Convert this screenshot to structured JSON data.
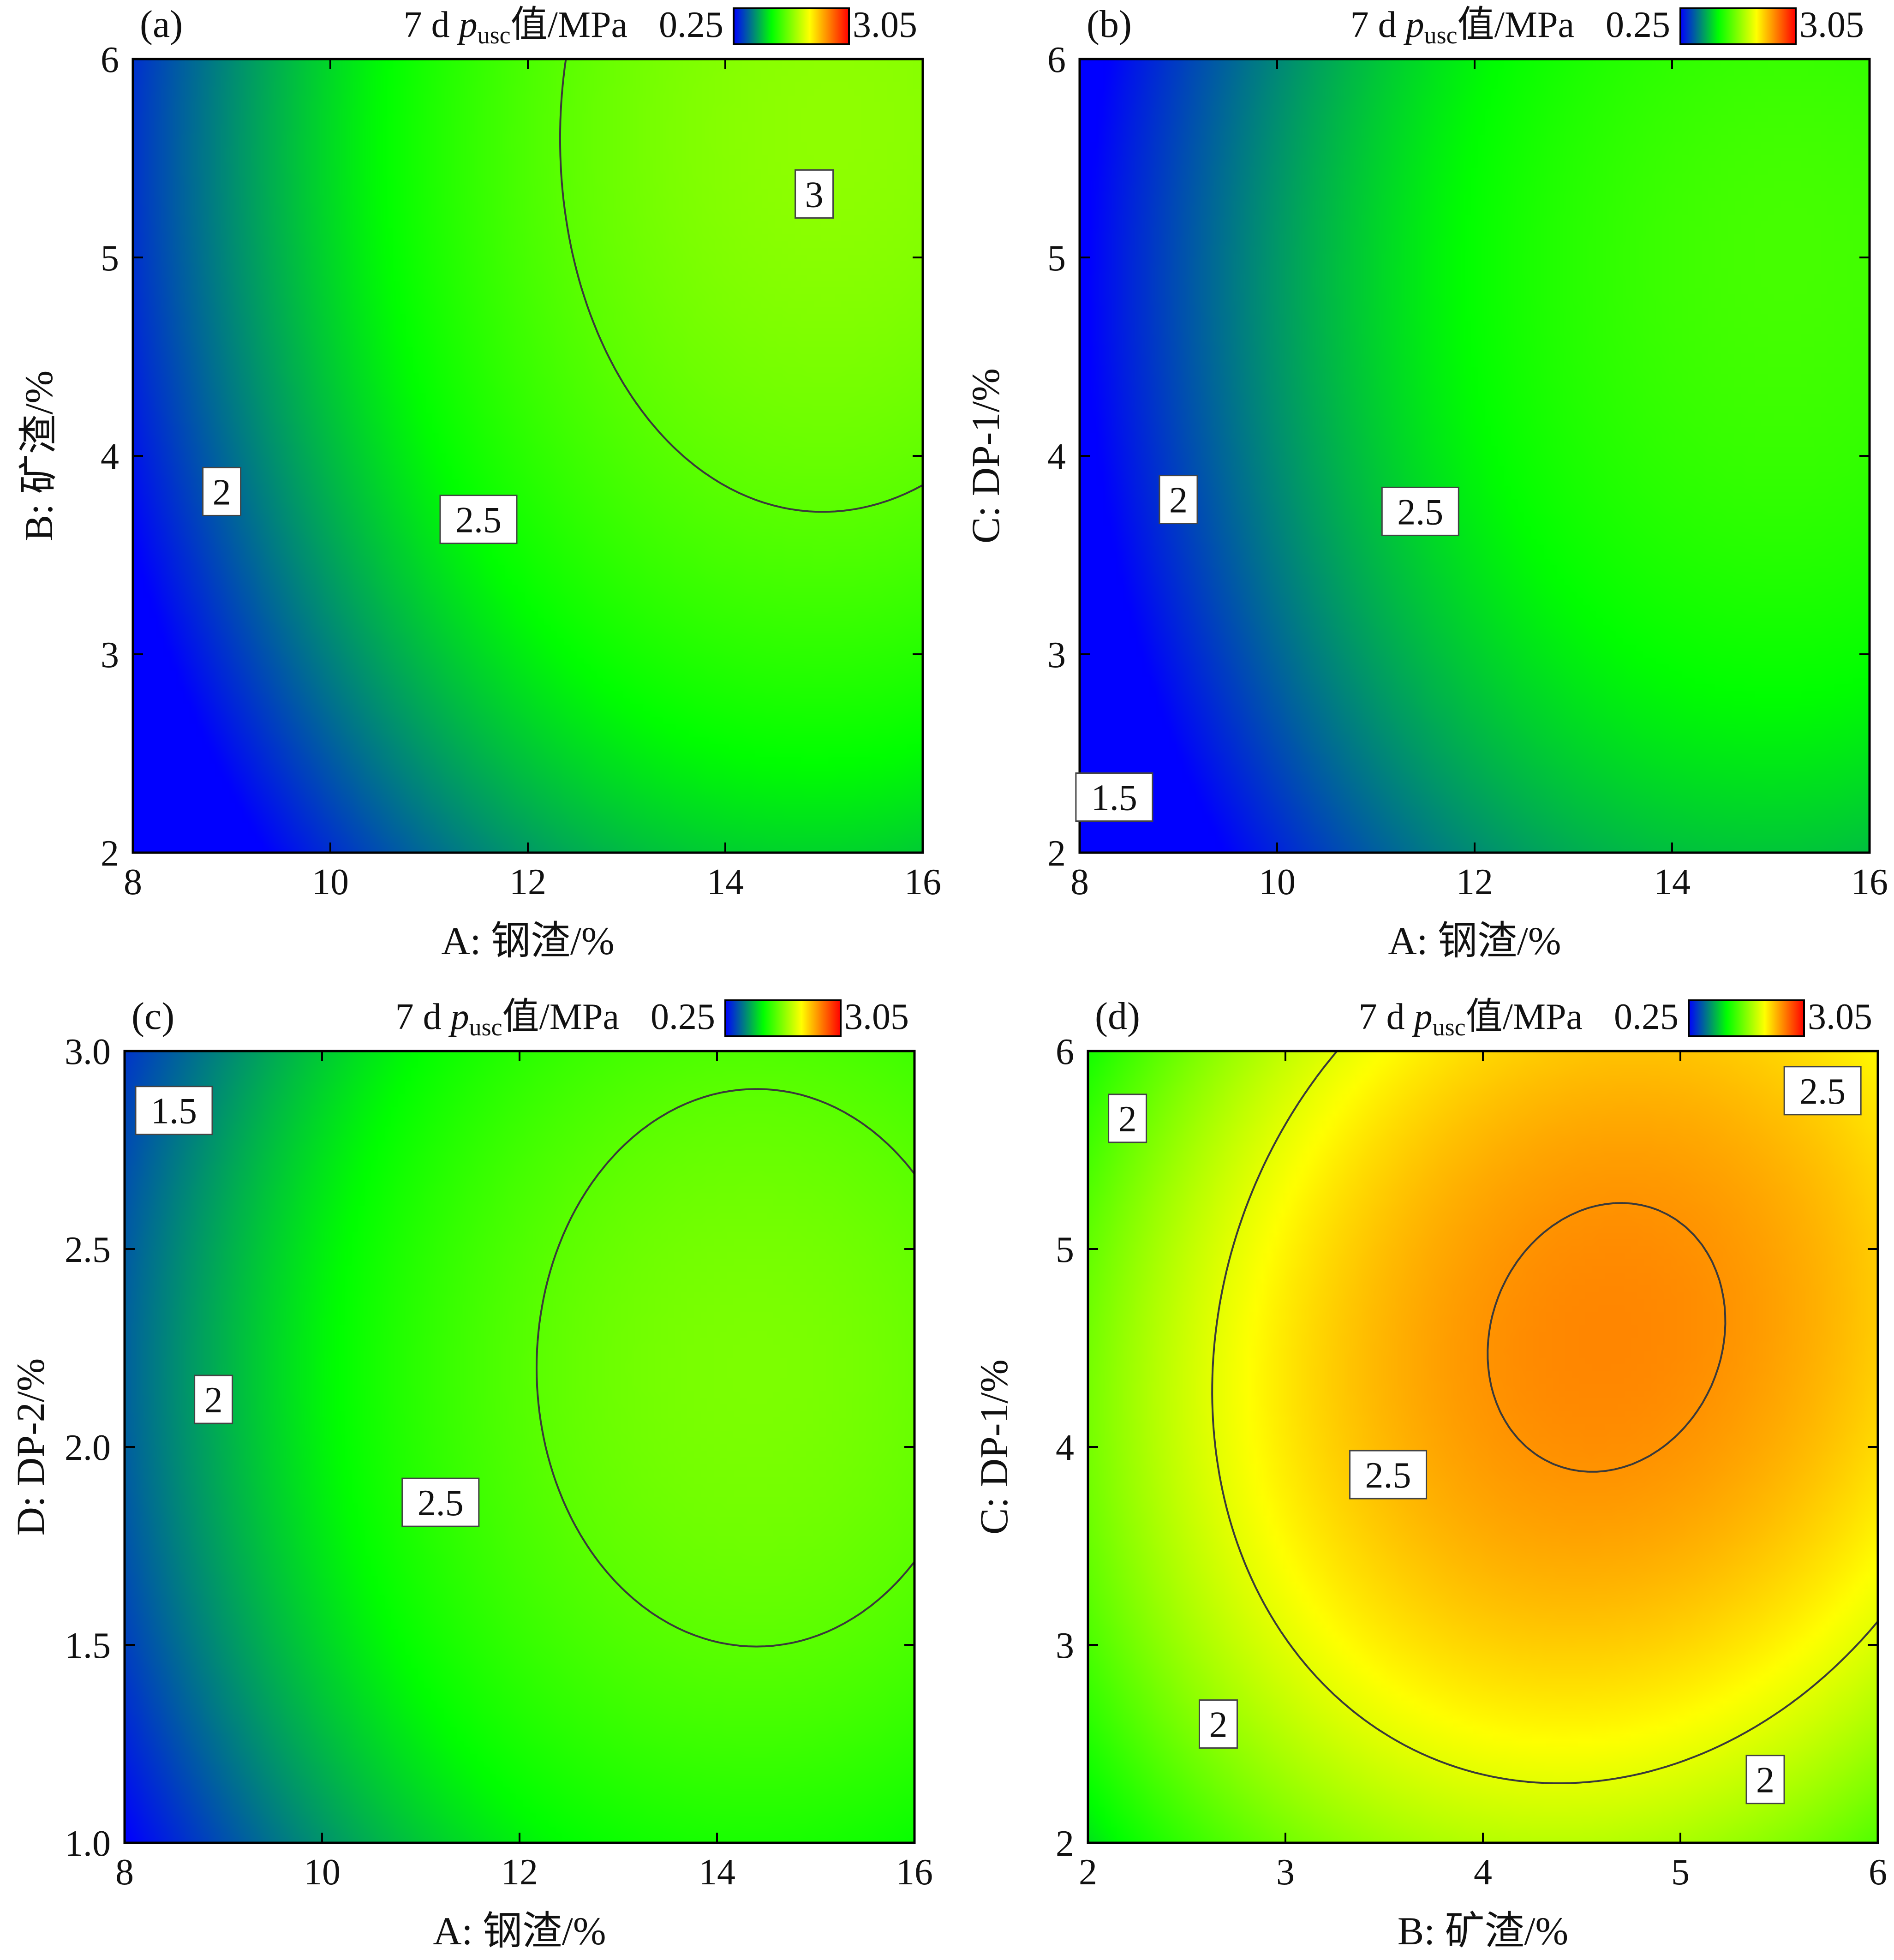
{
  "colorbar": {
    "title_main": "7 d ",
    "title_var": "p",
    "title_sub": "usc",
    "title_tail": "值/MPa",
    "min_label": "0.25",
    "max_label": "3.05",
    "min": 0.25,
    "max": 3.05,
    "stops": [
      "#0000ff",
      "#00ff00",
      "#ffff00",
      "#ff0000"
    ]
  },
  "chart_data": [
    {
      "type": "heatmap",
      "panel_label": "(a)",
      "xlabel": "A: 钢渣/%",
      "ylabel": "B: 矿渣/%",
      "xlim": [
        8,
        16
      ],
      "ylim": [
        2,
        6
      ],
      "x_ticks": [
        "8",
        "10",
        "12",
        "14",
        "16"
      ],
      "y_ticks": [
        "2",
        "3",
        "4",
        "5",
        "6"
      ],
      "surface": {
        "a": -1.064,
        "b": 0.529,
        "p": 0.03,
        "q": -0.0131,
        "r": 0.0,
        "d": 0.0,
        "e": 0.0,
        "f": 0.0
      },
      "contour_levels": [
        1.5,
        2,
        2.5,
        3
      ],
      "contour_labels": [
        {
          "text": "3",
          "x": 14.9,
          "y": 5.32
        },
        {
          "text": "2.5",
          "x": 11.5,
          "y": 3.68
        },
        {
          "text": "2",
          "x": 8.9,
          "y": 3.82
        }
      ]
    },
    {
      "type": "heatmap",
      "panel_label": "(b)",
      "xlabel": "A: 钢渣/%",
      "ylabel": "C: DP-1/%",
      "xlim": [
        8,
        16
      ],
      "ylim": [
        2,
        6
      ],
      "x_ticks": [
        "8",
        "10",
        "12",
        "14",
        "16"
      ],
      "y_ticks": [
        "2",
        "3",
        "4",
        "5",
        "6"
      ],
      "surface": {
        "a": -0.947,
        "b": 0.4665,
        "p": 0.0297,
        "q": -0.01361,
        "r": 0.0,
        "d": 0.0,
        "e": 0.0,
        "f": 0.0
      },
      "contour_levels": [
        1.5,
        2,
        2.5
      ],
      "contour_labels": [
        {
          "text": "2.5",
          "x": 11.45,
          "y": 3.72
        },
        {
          "text": "2",
          "x": 9.0,
          "y": 3.78
        },
        {
          "text": "1.5",
          "x": 8.35,
          "y": 2.28
        }
      ]
    },
    {
      "type": "heatmap",
      "panel_label": "(c)",
      "xlabel": "A: 钢渣/%",
      "ylabel": "D: DP-2/%",
      "xlim": [
        8,
        16
      ],
      "ylim": [
        1.0,
        3.0
      ],
      "x_ticks": [
        "8",
        "10",
        "12",
        "14",
        "16"
      ],
      "y_ticks": [
        "1.0",
        "1.5",
        "2.0",
        "2.5",
        "3.0"
      ],
      "surface": {
        "a": -0.846,
        "b": 1.1035,
        "p": 0.03,
        "q": -0.0125,
        "r": 0.0,
        "d": 0.0,
        "e": 0.0,
        "f": 0.0
      },
      "contour_levels": [
        1.5,
        2,
        2.5
      ],
      "contour_labels": [
        {
          "text": "2.5",
          "x": 11.2,
          "y": 1.86
        },
        {
          "text": "2",
          "x": 8.9,
          "y": 2.12
        },
        {
          "text": "1.5",
          "x": 8.5,
          "y": 2.85
        }
      ]
    },
    {
      "type": "heatmap",
      "panel_label": "(d)",
      "xlabel": "B: 矿渣/%",
      "ylabel": "C: DP-1/%",
      "xlim": [
        2,
        6
      ],
      "ylim": [
        2,
        6
      ],
      "x_ticks": [
        "2",
        "3",
        "4",
        "5",
        "6"
      ],
      "y_ticks": [
        "2",
        "3",
        "4",
        "5",
        "6"
      ],
      "surface": {
        "a": -1.0,
        "b": 0.0,
        "p": 0.0,
        "q": 0.0,
        "r": 0.0,
        "d": 0.0,
        "e": 0.0,
        "f": 0.0
      },
      "contour_levels": [
        2,
        2.5
      ],
      "contour_labels": [
        {
          "text": "2.5",
          "x": 5.72,
          "y": 5.8
        },
        {
          "text": "2.5",
          "x": 3.52,
          "y": 3.86
        },
        {
          "text": "2",
          "x": 2.2,
          "y": 5.66
        },
        {
          "text": "2",
          "x": 2.66,
          "y": 2.6
        },
        {
          "text": "2",
          "x": 5.43,
          "y": 2.32
        }
      ]
    }
  ]
}
